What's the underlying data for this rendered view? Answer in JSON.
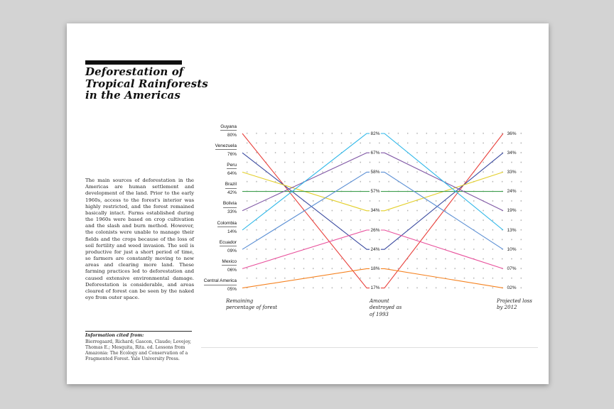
{
  "page": {
    "background_color": "#d3d3d3",
    "title": "Deforestation of\nTropical Rainforests\nin the Americas",
    "body_text": "The main sources of deforestation in the Americas are human settlement and development of the land. Prior to the early 1960s, access to the forest's interior was highly restricted, and the forest remained basically intact. Farms established during the 1960s were based on crop cultivation and the slash and burn method. However, the colonists were unable to manage their fields and the crops because of the loss of soil fertility and weed invasion. The soil is productive for just a short period of time, so farmers are constantly moving to new areas and clearing more land. These farming practices led to deforestation and caused extensive environmental damage. Deforestation is considerable, and areas cleared of forest can be seen by the naked eye from outer space.",
    "citation_heading": "Information cited from:",
    "citation_text": "Bierregaard, Richard; Gascon, Claude; Lovejoy, Thomas E.; Mesquita, Rita. ed. Lessons from Amazonia: The Ecology and Conservation of a Fragmented Forest. Yale University Press."
  },
  "chart_data": {
    "type": "line",
    "subtype": "ranked-slopegraph",
    "grid": "dot-matrix",
    "grid_dot_color": "#b0b0b0",
    "value_format": "two-digit zero-padded percent",
    "columns": [
      {
        "id": "remaining",
        "label": "Remaining\npercentage of forest"
      },
      {
        "id": "destroyed_1993",
        "label": "Amount\ndestroyed as\nof 1993"
      },
      {
        "id": "projected_2012",
        "label": "Projected loss\nby 2012"
      }
    ],
    "series": [
      {
        "name": "Guyana",
        "color": "#e8413c",
        "remaining": 80,
        "destroyed_1993": 17,
        "projected_2012": 36
      },
      {
        "name": "Venezuela",
        "color": "#3a4a9f",
        "remaining": 76,
        "destroyed_1993": 24,
        "projected_2012": 34
      },
      {
        "name": "Peru",
        "color": "#e3cf2a",
        "remaining": 64,
        "destroyed_1993": 34,
        "projected_2012": 33
      },
      {
        "name": "Brazil",
        "color": "#3f9e4d",
        "remaining": 42,
        "destroyed_1993": 57,
        "projected_2012": 24
      },
      {
        "name": "Bolivia",
        "color": "#8058a5",
        "remaining": 33,
        "destroyed_1993": 67,
        "projected_2012": 19
      },
      {
        "name": "Colombia",
        "color": "#2ab6e8",
        "remaining": 14,
        "destroyed_1993": 82,
        "projected_2012": 13
      },
      {
        "name": "Ecuador",
        "color": "#5b8fd4",
        "remaining": 9,
        "destroyed_1993": 58,
        "projected_2012": 10
      },
      {
        "name": "Mexico",
        "color": "#e84f9b",
        "remaining": 6,
        "destroyed_1993": 26,
        "projected_2012": 7
      },
      {
        "name": "Central America",
        "color": "#f58220",
        "remaining": 5,
        "destroyed_1993": 18,
        "projected_2012": 2
      }
    ]
  }
}
